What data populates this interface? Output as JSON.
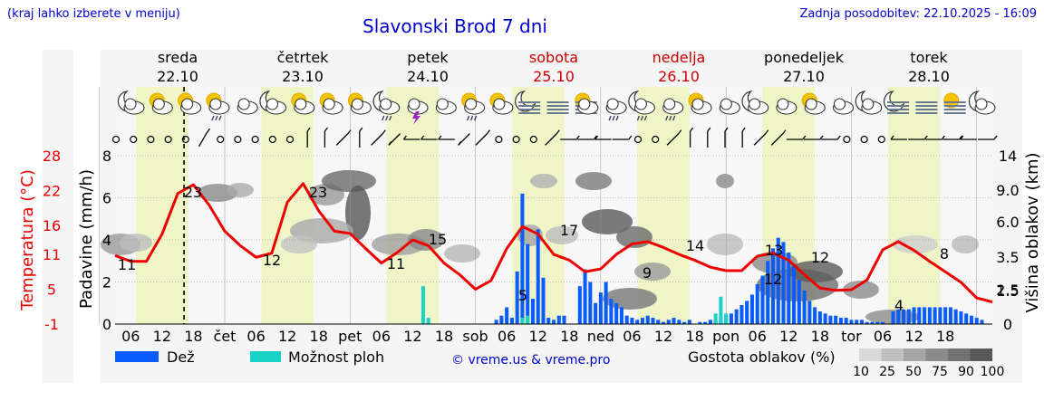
{
  "header": {
    "left_note": "(kraj lahko izberete v meniju)",
    "title": "Slavonski Brod 7 dni",
    "updated": "Zadnja posodobitev: 22.10.2025 - 16:09"
  },
  "days": [
    {
      "name": "sreda",
      "date": "22.10",
      "weekend": false
    },
    {
      "name": "četrtek",
      "date": "23.10",
      "weekend": false
    },
    {
      "name": "petek",
      "date": "24.10",
      "weekend": false
    },
    {
      "name": "sobota",
      "date": "25.10",
      "weekend": true
    },
    {
      "name": "nedelja",
      "date": "26.10",
      "weekend": true
    },
    {
      "name": "ponedeljek",
      "date": "27.10",
      "weekend": false
    },
    {
      "name": "torek",
      "date": "28.10",
      "weekend": false
    }
  ],
  "colors": {
    "rain": "#0a5cff",
    "showers": "#1ad3c8",
    "temperature": "#ee0000",
    "weekend": "#cc0000",
    "daylight": "#f0f5c8",
    "title": "#0000cc"
  },
  "chart_data": {
    "type": "line",
    "title": "Slavonski Brod 7 dni",
    "x_tick_labels": [
      "06",
      "12",
      "18",
      "čet",
      "06",
      "12",
      "18",
      "pet",
      "06",
      "12",
      "18",
      "sob",
      "06",
      "12",
      "18",
      "ned",
      "06",
      "12",
      "18",
      "pon",
      "06",
      "12",
      "18",
      "tor",
      "06",
      "12",
      "18"
    ],
    "x_unit": "hours since 22.10 00:00",
    "x_range": [
      3,
      171
    ],
    "now_marker_hour": 16.2,
    "left_axis_temp": {
      "label": "Temperatura (°C)",
      "ticks": [
        -1,
        5,
        11,
        16,
        22,
        28
      ]
    },
    "left_axis_precip": {
      "label": "Padavine (mm/h)",
      "ticks": [
        0,
        2,
        4,
        6,
        8
      ],
      "range": [
        0,
        8
      ]
    },
    "right_axis": {
      "label": "Višina oblakov (km)",
      "ticks": [
        "0",
        "1.5",
        "2.5",
        "3.5",
        "6.0",
        "9.0",
        "14"
      ]
    },
    "series": [
      {
        "name": "Temperatura",
        "unit": "°C",
        "x": [
          3,
          6,
          9,
          12,
          15,
          18,
          21,
          24,
          27,
          30,
          33,
          36,
          39,
          42,
          45,
          48,
          51,
          54,
          57,
          60,
          63,
          66,
          69,
          72,
          75,
          78,
          81,
          84,
          87,
          90,
          93,
          96,
          99,
          102,
          105,
          108,
          111,
          114,
          117,
          120,
          123,
          126,
          129,
          132,
          135,
          138,
          141,
          144,
          147,
          150,
          153,
          156,
          159,
          162,
          165,
          168,
          171
        ],
        "y": [
          10.8,
          9.8,
          9.8,
          14.5,
          21.5,
          23,
          19.5,
          15,
          12.5,
          10.5,
          11.2,
          20,
          23.2,
          18.5,
          15,
          14.6,
          12,
          9.5,
          11.3,
          13.5,
          12.5,
          9.5,
          7.5,
          5,
          6.5,
          12,
          15.8,
          14.5,
          11,
          10,
          8,
          8.5,
          11,
          12.8,
          13.2,
          12.2,
          11,
          10,
          8.8,
          8.2,
          8.2,
          10.7,
          11.2,
          10,
          7.5,
          5.2,
          4.8,
          4.9,
          6.6,
          11.8,
          13.2,
          11.7,
          9.8,
          8,
          6.2,
          3.5,
          2.8
        ]
      },
      {
        "name": "Dež",
        "unit": "mm/h",
        "x": [
          76,
          77,
          78,
          79,
          80,
          81,
          82,
          83,
          84,
          85,
          86,
          87,
          88,
          89,
          92,
          93,
          94,
          95,
          96,
          97,
          98,
          99,
          100,
          101,
          102,
          103,
          104,
          105,
          106,
          107,
          108,
          109,
          110,
          111,
          112,
          113
        ],
        "y": [
          0.2,
          0.4,
          0.8,
          0.3,
          2.5,
          6.2,
          3.8,
          1.2,
          4.5,
          2.2,
          0.3,
          0.2,
          0.4,
          0.4,
          1.8,
          2.6,
          2.0,
          1.0,
          1.5,
          2.0,
          1.2,
          1.0,
          0.8,
          0.4,
          0.3,
          0.2,
          0.3,
          0.4,
          0.3,
          0.2,
          0.1,
          0.2,
          0.3,
          0.2,
          0.1,
          0.2
        ]
      },
      {
        "name": "Dež",
        "unit": "mm/h",
        "x": [
          115,
          116,
          117,
          118,
          119,
          120,
          121,
          122,
          123,
          124,
          125,
          126,
          127,
          128,
          129,
          130,
          131,
          132,
          133,
          134,
          135,
          136,
          137,
          138,
          139,
          140,
          141,
          142,
          143,
          144,
          145,
          146,
          147,
          148,
          149,
          150
        ],
        "y": [
          0.1,
          0.1,
          0.2,
          0.2,
          0.3,
          0.4,
          0.5,
          0.7,
          0.9,
          1.1,
          1.4,
          1.9,
          2.3,
          3.0,
          3.6,
          4.1,
          3.9,
          3.4,
          2.8,
          2.1,
          1.6,
          1.1,
          0.8,
          0.6,
          0.5,
          0.4,
          0.4,
          0.3,
          0.3,
          0.2,
          0.2,
          0.2,
          0.1,
          0.1,
          0.1,
          0.1
        ]
      },
      {
        "name": "Dež",
        "unit": "mm/h",
        "x": [
          152,
          153,
          154,
          155,
          156,
          157,
          158,
          159,
          160,
          161,
          162,
          163,
          164,
          165,
          166,
          167,
          168,
          169
        ],
        "y": [
          0.6,
          0.7,
          0.7,
          0.7,
          0.8,
          0.8,
          0.8,
          0.8,
          0.8,
          0.8,
          0.8,
          0.8,
          0.7,
          0.6,
          0.5,
          0.4,
          0.3,
          0.2
        ]
      },
      {
        "name": "Možnost ploh",
        "unit": "mm/h",
        "x": [
          62,
          63,
          81,
          82,
          118,
          119,
          120
        ],
        "y": [
          1.8,
          0.3,
          0.3,
          0.4,
          0.5,
          1.3,
          0.5
        ]
      }
    ],
    "temperature_labels": [
      {
        "x": 15,
        "text": "23"
      },
      {
        "x": 39,
        "text": "23"
      },
      {
        "x": 56,
        "text": "12"
      },
      {
        "x": 69,
        "text": "11"
      },
      {
        "x": 77,
        "text": "15"
      },
      {
        "x": 99,
        "text": "5"
      },
      {
        "x": 108,
        "text": "17"
      },
      {
        "x": 129,
        "text": "9"
      },
      {
        "x": 144,
        "text": "14"
      },
      {
        "x": 156,
        "text": "12"
      },
      {
        "x": 168,
        "text": "13"
      },
      {
        "x": 178,
        "text": "4"
      },
      {
        "x": 191,
        "text": "12"
      },
      {
        "x": 202,
        "text": "8"
      },
      {
        "x": 3,
        "text": "11"
      }
    ],
    "legend": [
      {
        "key": "rain",
        "label": "Dež"
      },
      {
        "key": "showers",
        "label": "Možnost ploh"
      },
      {
        "key": "cloud_density",
        "label": "Gostota oblakov (%)",
        "steps": [
          "10",
          "25",
          "50",
          "75",
          "90",
          "100"
        ]
      }
    ],
    "grid": true
  },
  "footer": {
    "copyright": "© vreme.us & vreme.pro"
  },
  "icons": {
    "weather": [
      "moon-cloud",
      "sun-cloud",
      "sun-cloud",
      "sun-cloud-rain",
      "cloud",
      "moon-cloud",
      "sun-cloud",
      "sun-cloud",
      "sun-cloud",
      "moon-cloud-rain",
      "cloud-thunder",
      "cloud",
      "sun-cloud-rain",
      "sun-cloud",
      "moon-fog",
      "fog",
      "sun-fog-cloud",
      "cloud-rain",
      "moon-cloud-rain",
      "cloud-rain",
      "sun-cloud",
      "cloud",
      "moon-cloud",
      "cloud",
      "sun-cloud",
      "cloud",
      "moon-cloud",
      "moon-fog",
      "fog",
      "sun-fog",
      "moon-cloud"
    ],
    "wind": [
      "calm",
      "calm",
      "calm",
      "calm",
      "calm",
      "n-ne",
      "calm",
      "calm",
      "calm",
      "calm",
      "calm",
      "n",
      "n",
      "ne",
      "n",
      "ne",
      "sw",
      "w",
      "w",
      "w",
      "sw",
      "ne",
      "calm",
      "calm",
      "calm",
      "ne",
      "e",
      "e",
      "w",
      "e",
      "calm",
      "calm",
      "ne",
      "n",
      "n",
      "n",
      "n",
      "ne",
      "ne",
      "e",
      "e",
      "e",
      "calm",
      "calm",
      "calm",
      "w",
      "e",
      "e",
      "e",
      "w",
      "e"
    ]
  }
}
